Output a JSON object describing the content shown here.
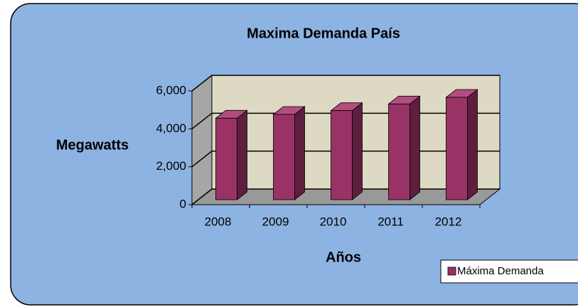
{
  "chart_data": {
    "type": "bar3d",
    "title": "Maxima Demanda País",
    "y_label": "Megawatts",
    "x_label": "Años",
    "categories": [
      "2008",
      "2009",
      "2010",
      "2011",
      "2012"
    ],
    "series": [
      {
        "name": "Máxima Demanda",
        "color": "#993366",
        "values": [
          4300,
          4500,
          4700,
          5050,
          5400
        ]
      }
    ],
    "ylim": [
      0,
      6000
    ],
    "yticks": [
      0,
      {
        "value": 2000,
        "label": "2,000"
      },
      {
        "value": 4000,
        "label": "4,000"
      },
      {
        "value": 6000,
        "label": "6,000"
      }
    ],
    "grid": true,
    "legend": "bottom-right"
  }
}
